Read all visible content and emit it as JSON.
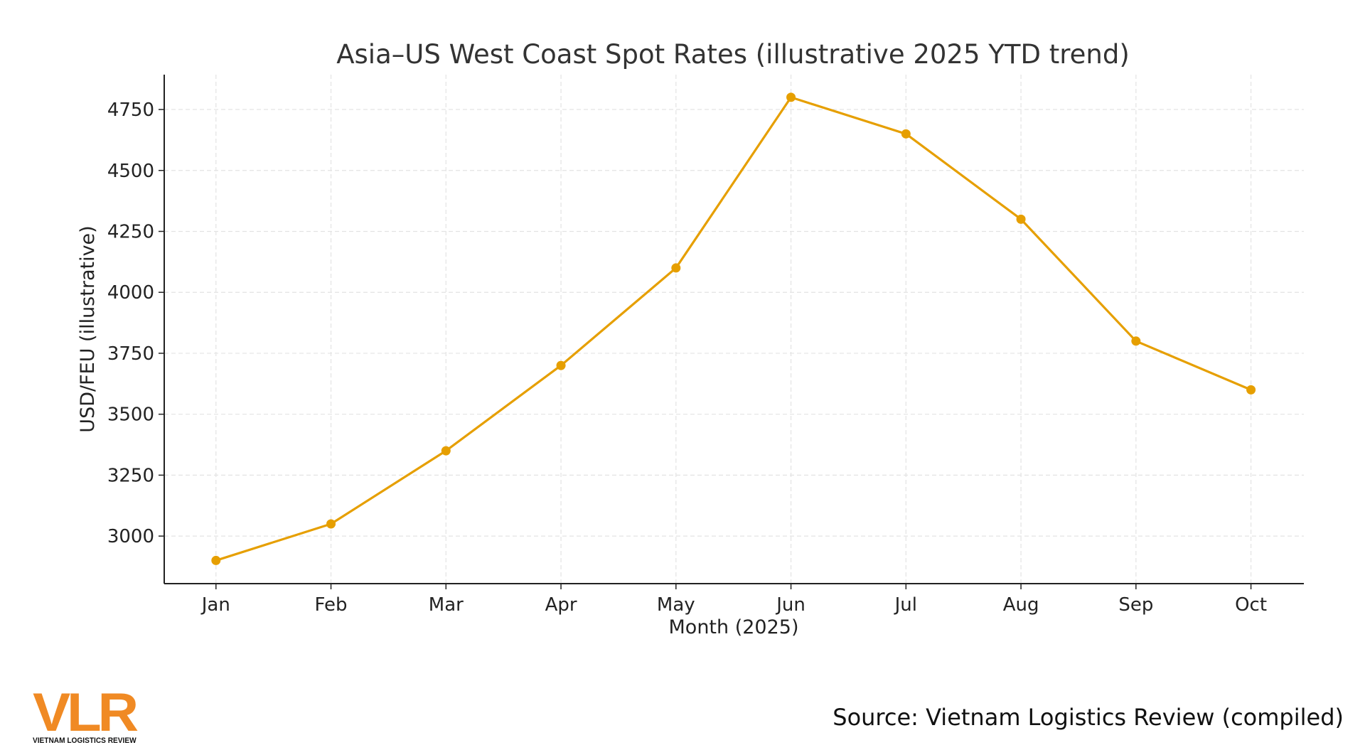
{
  "chart_data": {
    "type": "line",
    "title": "Asia–US West Coast Spot Rates (illustrative 2025 YTD trend)",
    "xlabel": "Month (2025)",
    "ylabel": "USD/FEU (illustrative)",
    "categories": [
      "Jan",
      "Feb",
      "Mar",
      "Apr",
      "May",
      "Jun",
      "Jul",
      "Aug",
      "Sep",
      "Oct"
    ],
    "series": [
      {
        "values": [
          2900,
          3050,
          3350,
          3700,
          4100,
          4800,
          4650,
          4300,
          3800,
          3600
        ],
        "color": "#E69F00",
        "marker": "circle"
      }
    ],
    "yticks": [
      3000,
      3250,
      3500,
      3750,
      4000,
      4250,
      4500,
      4750
    ],
    "ylim": [
      2805,
      4893
    ],
    "grid": true,
    "grid_style": "dashed"
  },
  "footer": {
    "source": "Source: Vietnam Logistics Review (compiled)",
    "logo_text": "VLR",
    "logo_subtitle": "VIETNAM LOGISTICS REVIEW",
    "logo_color": "#F08A24"
  }
}
